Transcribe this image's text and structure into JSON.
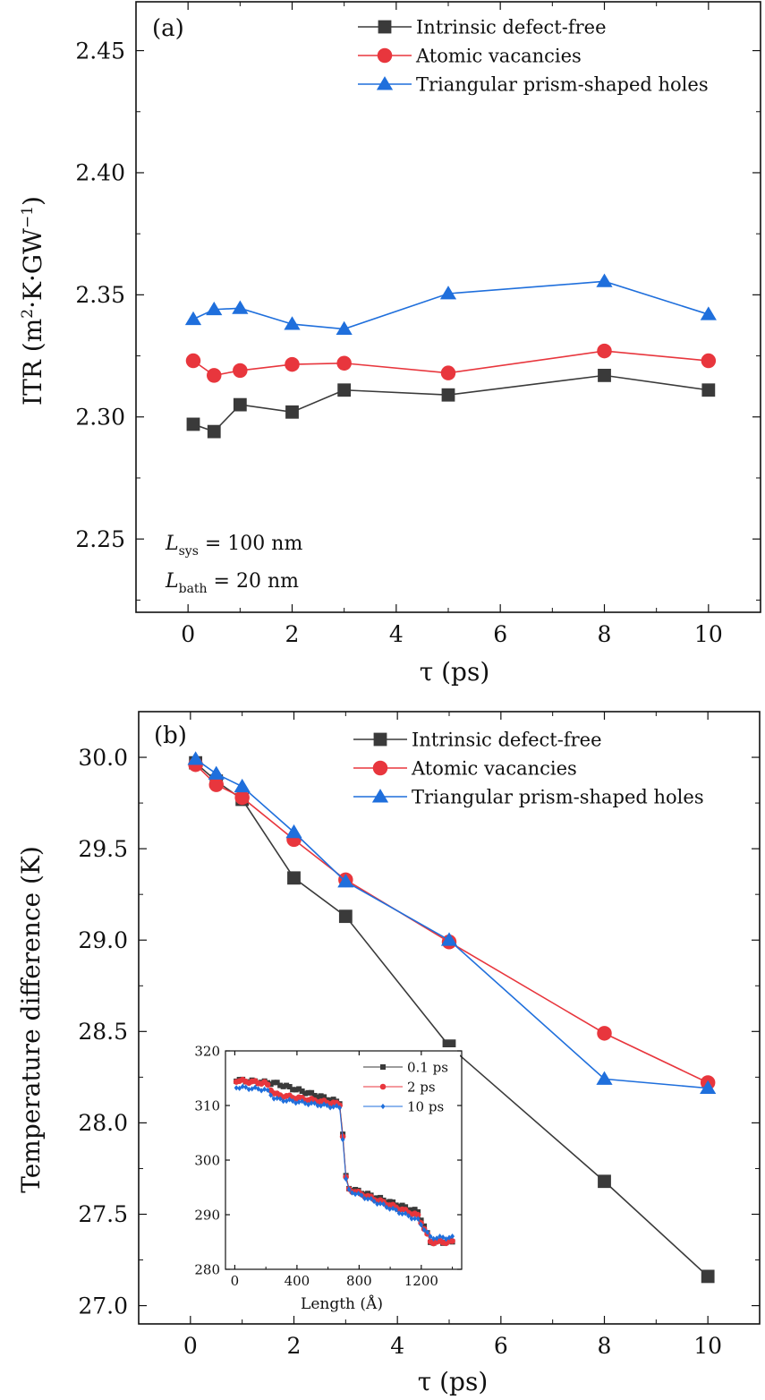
{
  "colors": {
    "intrinsic": "#3a3a3a",
    "vacancies": "#e8363d",
    "holes": "#1f6fdc",
    "axis": "#111111"
  },
  "chart_data": [
    {
      "id": "a",
      "type": "line",
      "panel_label": "(a)",
      "xlabel": "τ (ps)",
      "ylabel": "ITR (m²·K·GW⁻¹)",
      "xlim": [
        -1,
        11
      ],
      "ylim": [
        2.22,
        2.47
      ],
      "xticks": [
        0,
        2,
        4,
        6,
        8,
        10
      ],
      "yticks": [
        2.25,
        2.3,
        2.35,
        2.4,
        2.45
      ],
      "ytick_labels": [
        "2.25",
        "2.30",
        "2.35",
        "2.40",
        "2.45"
      ],
      "legend_position": "top-right",
      "annotations": [
        "Lsys = 100 nm",
        "Lbath = 20 nm"
      ],
      "x": [
        0.1,
        0.5,
        1,
        2,
        3,
        5,
        8,
        10
      ],
      "series": [
        {
          "name": "Intrinsic defect-free",
          "marker": "square",
          "color_key": "intrinsic",
          "values": [
            2.297,
            2.294,
            2.305,
            2.302,
            2.311,
            2.309,
            2.317,
            2.311
          ]
        },
        {
          "name": "Atomic vacancies",
          "marker": "circle",
          "color_key": "vacancies",
          "values": [
            2.323,
            2.317,
            2.319,
            2.3215,
            2.322,
            2.318,
            2.327,
            2.323
          ]
        },
        {
          "name": "Triangular prism-shaped holes",
          "marker": "triangle",
          "color_key": "holes",
          "values": [
            2.34,
            2.344,
            2.3445,
            2.338,
            2.336,
            2.3505,
            2.3555,
            2.342
          ]
        }
      ]
    },
    {
      "id": "b",
      "type": "line",
      "panel_label": "(b)",
      "xlabel": "τ (ps)",
      "ylabel": "Temperature difference (K)",
      "xlim": [
        -1,
        11
      ],
      "ylim": [
        26.9,
        30.25
      ],
      "xticks": [
        0,
        2,
        4,
        6,
        8,
        10
      ],
      "yticks": [
        27.0,
        27.5,
        28.0,
        28.5,
        29.0,
        29.5,
        30.0
      ],
      "ytick_labels": [
        "27.0",
        "27.5",
        "28.0",
        "28.5",
        "29.0",
        "29.5",
        "30.0"
      ],
      "legend_position": "top-right",
      "x": [
        0.1,
        0.5,
        1,
        2,
        3,
        5,
        8,
        10
      ],
      "series": [
        {
          "name": "Intrinsic defect-free",
          "marker": "square",
          "color_key": "intrinsic",
          "values": [
            29.97,
            29.87,
            29.77,
            29.34,
            29.13,
            28.42,
            27.68,
            27.16
          ]
        },
        {
          "name": "Atomic vacancies",
          "marker": "circle",
          "color_key": "vacancies",
          "values": [
            29.96,
            29.85,
            29.78,
            29.55,
            29.33,
            28.99,
            28.49,
            28.22
          ]
        },
        {
          "name": "Triangular prism-shaped holes",
          "marker": "triangle",
          "color_key": "holes",
          "values": [
            29.99,
            29.91,
            29.84,
            29.59,
            29.32,
            29.0,
            28.24,
            28.19
          ]
        }
      ]
    },
    {
      "id": "b-inset",
      "type": "line",
      "xlabel": "Length (Å)",
      "ylabel": "",
      "xlim": [
        -60,
        1460
      ],
      "ylim": [
        280,
        320
      ],
      "xticks": [
        0,
        400,
        800,
        1200
      ],
      "yticks": [
        280,
        290,
        300,
        310,
        320
      ],
      "legend_position": "top-right",
      "series": [
        {
          "name": "0.1 ps",
          "marker": "square",
          "color_key": "intrinsic",
          "plateau_left": [
            314.7,
            314.1,
            310.5
          ],
          "plateau_right": [
            295.0,
            294.5,
            290.5
          ],
          "plateau_end": 285.0,
          "points": 70
        },
        {
          "name": "2 ps",
          "marker": "circle",
          "color_key": "vacancies",
          "plateau_left": [
            314.6,
            312.0,
            310.2
          ],
          "plateau_right": [
            294.8,
            293.5,
            289.8
          ],
          "plateau_end": 285.0,
          "points": 70
        },
        {
          "name": "10 ps",
          "marker": "diamond",
          "color_key": "holes",
          "plateau_left": [
            313.4,
            311.2,
            309.6
          ],
          "plateau_right": [
            294.6,
            292.0,
            289.0
          ],
          "plateau_end": 285.8,
          "points": 70
        }
      ]
    }
  ]
}
